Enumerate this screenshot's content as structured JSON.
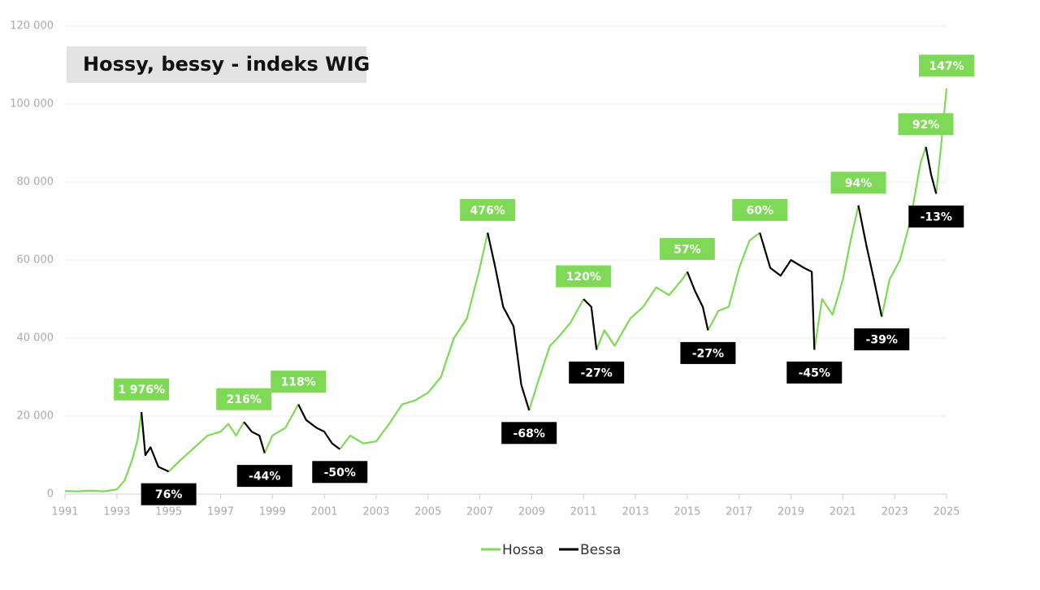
{
  "chart_data": {
    "type": "line",
    "title": "Hossy, bessy - indeks WIG",
    "x": [
      1991.0,
      1991.5,
      1992.0,
      1992.5,
      1993.0,
      1993.3,
      1993.6,
      1993.8,
      1993.95,
      1994.1,
      1994.3,
      1994.6,
      1995.0,
      1995.5,
      1996.0,
      1996.5,
      1997.0,
      1997.3,
      1997.6,
      1997.9,
      1998.2,
      1998.5,
      1998.7,
      1999.0,
      1999.5,
      2000.0,
      2000.3,
      2000.7,
      2001.0,
      2001.3,
      2001.6,
      2002.0,
      2002.5,
      2003.0,
      2003.5,
      2004.0,
      2004.5,
      2005.0,
      2005.5,
      2006.0,
      2006.5,
      2007.0,
      2007.3,
      2007.6,
      2007.9,
      2008.3,
      2008.6,
      2008.9,
      2009.3,
      2009.7,
      2010.0,
      2010.5,
      2011.0,
      2011.3,
      2011.5,
      2011.8,
      2012.2,
      2012.8,
      2013.3,
      2013.8,
      2014.3,
      2014.8,
      2015.0,
      2015.3,
      2015.6,
      2015.8,
      2016.2,
      2016.6,
      2017.0,
      2017.4,
      2017.8,
      2018.2,
      2018.6,
      2019.0,
      2019.5,
      2019.8,
      2019.9,
      2020.2,
      2020.6,
      2021.0,
      2021.3,
      2021.6,
      2021.9,
      2022.2,
      2022.5,
      2022.8,
      2023.2,
      2023.6,
      2024.0,
      2024.2,
      2024.4,
      2024.6,
      2024.8,
      2025.0
    ],
    "series": [
      {
        "name": "Hossa",
        "color": "#7ed957",
        "values": [
          800,
          700,
          900,
          700,
          1200,
          3500,
          9000,
          14000,
          21000,
          null,
          null,
          null,
          5800,
          9000,
          12000,
          15000,
          16000,
          18000,
          15000,
          18500,
          null,
          null,
          10500,
          15000,
          17000,
          23000,
          null,
          null,
          null,
          null,
          11500,
          15000,
          13000,
          13500,
          18000,
          23000,
          24000,
          26000,
          30000,
          40000,
          45000,
          58000,
          67000,
          null,
          null,
          null,
          null,
          21500,
          30000,
          38000,
          40000,
          44000,
          50000,
          null,
          37000,
          42000,
          38000,
          45000,
          48000,
          53000,
          51000,
          55000,
          57000,
          null,
          null,
          42000,
          47000,
          48000,
          58000,
          65000,
          67000,
          null,
          null,
          null,
          null,
          null,
          37000,
          50000,
          46000,
          55000,
          65000,
          74000,
          null,
          null,
          45500,
          55000,
          60000,
          70000,
          85000,
          89000,
          null,
          77000,
          90000,
          104000
        ],
        "segment_labels": [
          "1 976%",
          "216%",
          "118%",
          "476%",
          "120%",
          "57%",
          "60%",
          "94%",
          "92%",
          "147%"
        ]
      },
      {
        "name": "Bessa",
        "color": "#000000",
        "values": [
          null,
          null,
          null,
          null,
          null,
          null,
          null,
          null,
          21000,
          10000,
          12000,
          7000,
          5800,
          null,
          null,
          null,
          null,
          null,
          null,
          18500,
          16000,
          15000,
          10500,
          null,
          null,
          23000,
          19000,
          17000,
          16000,
          13000,
          11500,
          null,
          null,
          null,
          null,
          null,
          null,
          null,
          null,
          null,
          null,
          null,
          67000,
          58000,
          48000,
          43000,
          28000,
          21500,
          null,
          null,
          null,
          null,
          50000,
          48000,
          37000,
          null,
          null,
          null,
          null,
          null,
          null,
          null,
          57000,
          52000,
          48000,
          42000,
          null,
          null,
          null,
          null,
          67000,
          58000,
          56000,
          60000,
          58000,
          57000,
          37000,
          null,
          null,
          null,
          null,
          74000,
          64000,
          55000,
          45500,
          null,
          null,
          null,
          null,
          89000,
          82000,
          77000,
          null,
          null
        ],
        "segment_labels": [
          "76%",
          "-44%",
          "-50%",
          "-68%",
          "-27%",
          "-27%",
          "-45%",
          "-39%",
          "-13%"
        ]
      }
    ],
    "xlim": [
      1991,
      2025
    ],
    "ylim": [
      0,
      120000
    ],
    "xticks": [
      1991,
      1993,
      1995,
      1997,
      1999,
      2001,
      2003,
      2005,
      2007,
      2009,
      2011,
      2013,
      2015,
      2017,
      2019,
      2021,
      2023,
      2025
    ],
    "yticks": [
      0,
      {
        "value": 20000,
        "label": "20 000"
      },
      {
        "value": 40000,
        "label": "40 000"
      },
      {
        "value": 60000,
        "label": "60 000"
      },
      {
        "value": 80000,
        "label": "80 000"
      },
      {
        "value": 100000,
        "label": "100 000"
      },
      {
        "value": 120000,
        "label": "120 000"
      }
    ],
    "grid": true
  }
}
